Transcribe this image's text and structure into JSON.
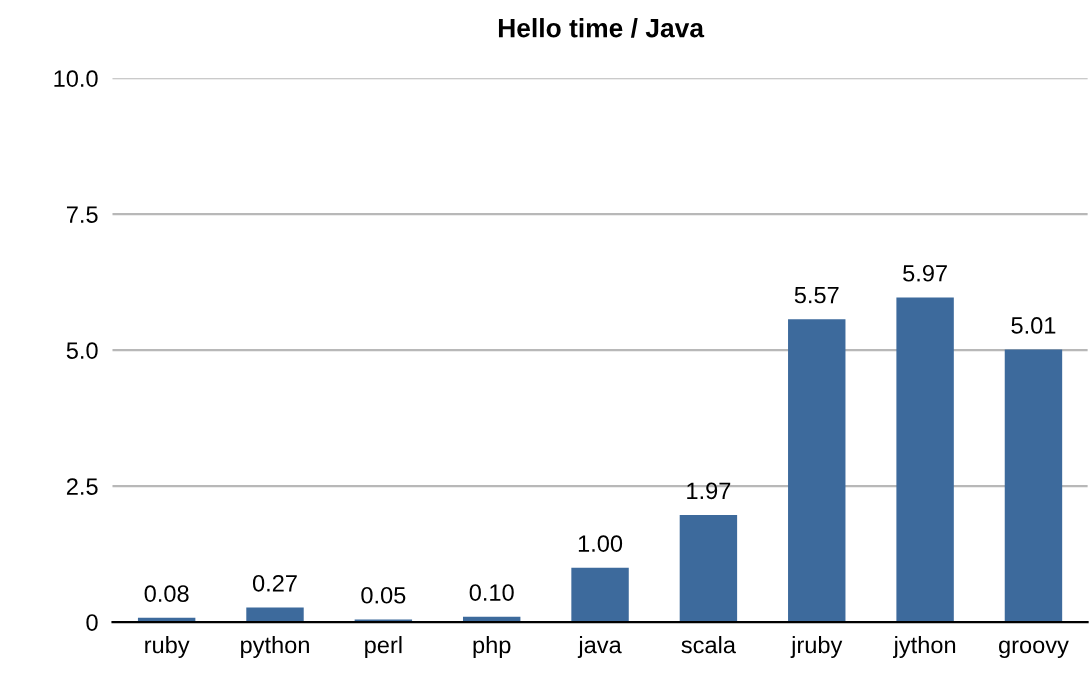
{
  "chart_data": {
    "type": "bar",
    "title": "Hello time / Java",
    "categories": [
      "ruby",
      "python",
      "perl",
      "php",
      "java",
      "scala",
      "jruby",
      "jython",
      "groovy"
    ],
    "values": [
      0.08,
      0.27,
      0.05,
      0.1,
      1.0,
      1.97,
      5.57,
      5.97,
      5.01
    ],
    "value_labels": [
      "0.08",
      "0.27",
      "0.05",
      "0.10",
      "1.00",
      "1.97",
      "5.57",
      "5.97",
      "5.01"
    ],
    "color": "#3d6a9c",
    "ylim": [
      0,
      10
    ],
    "yticks": [
      0,
      {
        "value": 2.5,
        "label": "2.5"
      },
      {
        "value": 5,
        "label": "5.0"
      },
      {
        "value": 7.5,
        "label": "7.5"
      },
      {
        "value": 10,
        "label": "10.0"
      }
    ],
    "grid": "y",
    "legend": false
  }
}
